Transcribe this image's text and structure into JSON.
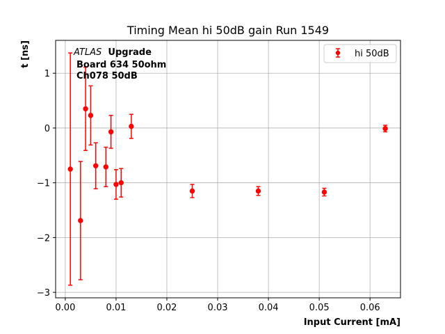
{
  "chart_data": {
    "type": "scatter",
    "title": "Timing Mean hi 50dB gain Run 1549",
    "xlabel": "Input Current [mA]",
    "ylabel": "t [ns]",
    "xlim": [
      -0.0019,
      0.066
    ],
    "ylim": [
      -3.1,
      1.6
    ],
    "xticks": [
      0.0,
      0.01,
      0.02,
      0.03,
      0.04,
      0.05,
      0.06
    ],
    "xtick_labels": [
      "0.00",
      "0.01",
      "0.02",
      "0.03",
      "0.04",
      "0.05",
      "0.06"
    ],
    "yticks": [
      -3,
      -2,
      -1,
      0,
      1
    ],
    "ytick_labels": [
      "−3",
      "−2",
      "−1",
      "0",
      "1"
    ],
    "grid": true,
    "legend_position": "top-right",
    "series": [
      {
        "name": "hi 50dB",
        "color": "#ff0000",
        "x": [
          0.001,
          0.003,
          0.004,
          0.005,
          0.006,
          0.008,
          0.009,
          0.01,
          0.011,
          0.013,
          0.025,
          0.038,
          0.051,
          0.063
        ],
        "y": [
          -0.75,
          -1.69,
          0.35,
          0.23,
          -0.69,
          -0.71,
          -0.07,
          -1.03,
          -1.0,
          0.03,
          -1.15,
          -1.15,
          -1.17,
          -0.01
        ],
        "yerr": [
          2.12,
          1.08,
          0.76,
          0.54,
          0.42,
          0.36,
          0.3,
          0.27,
          0.26,
          0.22,
          0.12,
          0.08,
          0.07,
          0.06
        ]
      }
    ],
    "annotation": {
      "atlas": "ATLAS",
      "upgrade": "Upgrade",
      "line2": "Board 634 50ohm",
      "line3": "Ch078 50dB"
    }
  }
}
